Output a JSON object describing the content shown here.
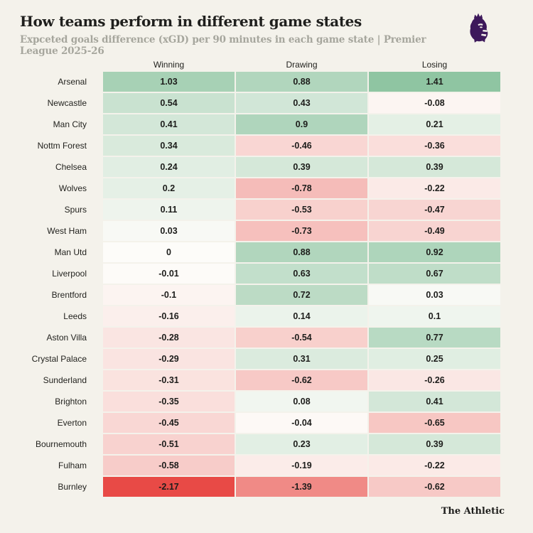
{
  "header": {
    "title": "How teams perform in different game states",
    "subtitle": "Expceted goals difference (xGD) per 90 minutes in each game state | Premier League 2025-26"
  },
  "logo": {
    "icon": "premier-league-lion-icon",
    "color": "#3D195B"
  },
  "chart_data": {
    "type": "heatmap",
    "title": "How teams perform in different game states",
    "subtitle": "Expceted goals difference (xGD) per 90 minutes in each game state | Premier League 2025-26",
    "columns": [
      "Winning",
      "Drawing",
      "Losing"
    ],
    "rows": [
      {
        "team": "Arsenal",
        "values": [
          1.03,
          0.88,
          1.41
        ]
      },
      {
        "team": "Newcastle",
        "values": [
          0.54,
          0.43,
          -0.08
        ]
      },
      {
        "team": "Man City",
        "values": [
          0.41,
          0.9,
          0.21
        ]
      },
      {
        "team": "Nottm Forest",
        "values": [
          0.34,
          -0.46,
          -0.36
        ]
      },
      {
        "team": "Chelsea",
        "values": [
          0.24,
          0.39,
          0.39
        ]
      },
      {
        "team": "Wolves",
        "values": [
          0.2,
          -0.78,
          -0.22
        ]
      },
      {
        "team": "Spurs",
        "values": [
          0.11,
          -0.53,
          -0.47
        ]
      },
      {
        "team": "West Ham",
        "values": [
          0.03,
          -0.73,
          -0.49
        ]
      },
      {
        "team": "Man Utd",
        "values": [
          0,
          0.88,
          0.92
        ]
      },
      {
        "team": "Liverpool",
        "values": [
          -0.01,
          0.63,
          0.67
        ]
      },
      {
        "team": "Brentford",
        "values": [
          -0.1,
          0.72,
          0.03
        ]
      },
      {
        "team": "Leeds",
        "values": [
          -0.16,
          0.14,
          0.1
        ]
      },
      {
        "team": "Aston Villa",
        "values": [
          -0.28,
          -0.54,
          0.77
        ]
      },
      {
        "team": "Crystal Palace",
        "values": [
          -0.29,
          0.31,
          0.25
        ]
      },
      {
        "team": "Sunderland",
        "values": [
          -0.31,
          -0.62,
          -0.26
        ]
      },
      {
        "team": "Brighton",
        "values": [
          -0.35,
          0.08,
          0.41
        ]
      },
      {
        "team": "Everton",
        "values": [
          -0.45,
          -0.04,
          -0.65
        ]
      },
      {
        "team": "Bournemouth",
        "values": [
          -0.51,
          0.23,
          0.39
        ]
      },
      {
        "team": "Fulham",
        "values": [
          -0.58,
          -0.19,
          -0.22
        ]
      },
      {
        "team": "Burnley",
        "values": [
          -2.17,
          -1.39,
          -0.62
        ]
      }
    ],
    "colorscale": {
      "neutral": "#FDFCF9",
      "positive": "#8FC5A2",
      "negative": "#E84A46",
      "domain": [
        -2.17,
        1.41
      ]
    },
    "legend": "none",
    "grid": "off",
    "xlabel": "",
    "ylabel": ""
  },
  "footer": {
    "credit": "The Athletic"
  },
  "colors": {
    "page_bg": "#F4F2EB",
    "title": "#1F1F1D",
    "subtitle": "#A6A69D",
    "logo_purple": "#3D195B"
  }
}
